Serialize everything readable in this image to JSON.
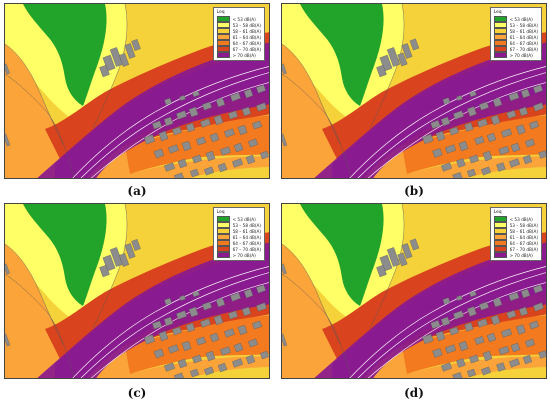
{
  "panels": [
    {
      "id": "a",
      "caption": "(a)"
    },
    {
      "id": "b",
      "caption": "(b)"
    },
    {
      "id": "c",
      "caption": "(c)"
    },
    {
      "id": "d",
      "caption": "(d)"
    }
  ],
  "legend": {
    "title": "Leq",
    "entries": [
      {
        "label": "< 53        dB(A)",
        "color": "#22a32a"
      },
      {
        "label": "53 – 58    dB(A)",
        "color": "#ffff66"
      },
      {
        "label": "58 – 61    dB(A)",
        "color": "#f5d23a"
      },
      {
        "label": "61 – 64    dB(A)",
        "color": "#fba43a"
      },
      {
        "label": "64 – 67    dB(A)",
        "color": "#f47a20"
      },
      {
        "label": "67 – 70    dB(A)",
        "color": "#d9431e"
      },
      {
        "label": "> 70        dB(A)",
        "color": "#8a1a8f"
      }
    ]
  },
  "colors": {
    "building": "#8c8c8c",
    "road_line": "#ffffff",
    "contour": "#555555"
  }
}
